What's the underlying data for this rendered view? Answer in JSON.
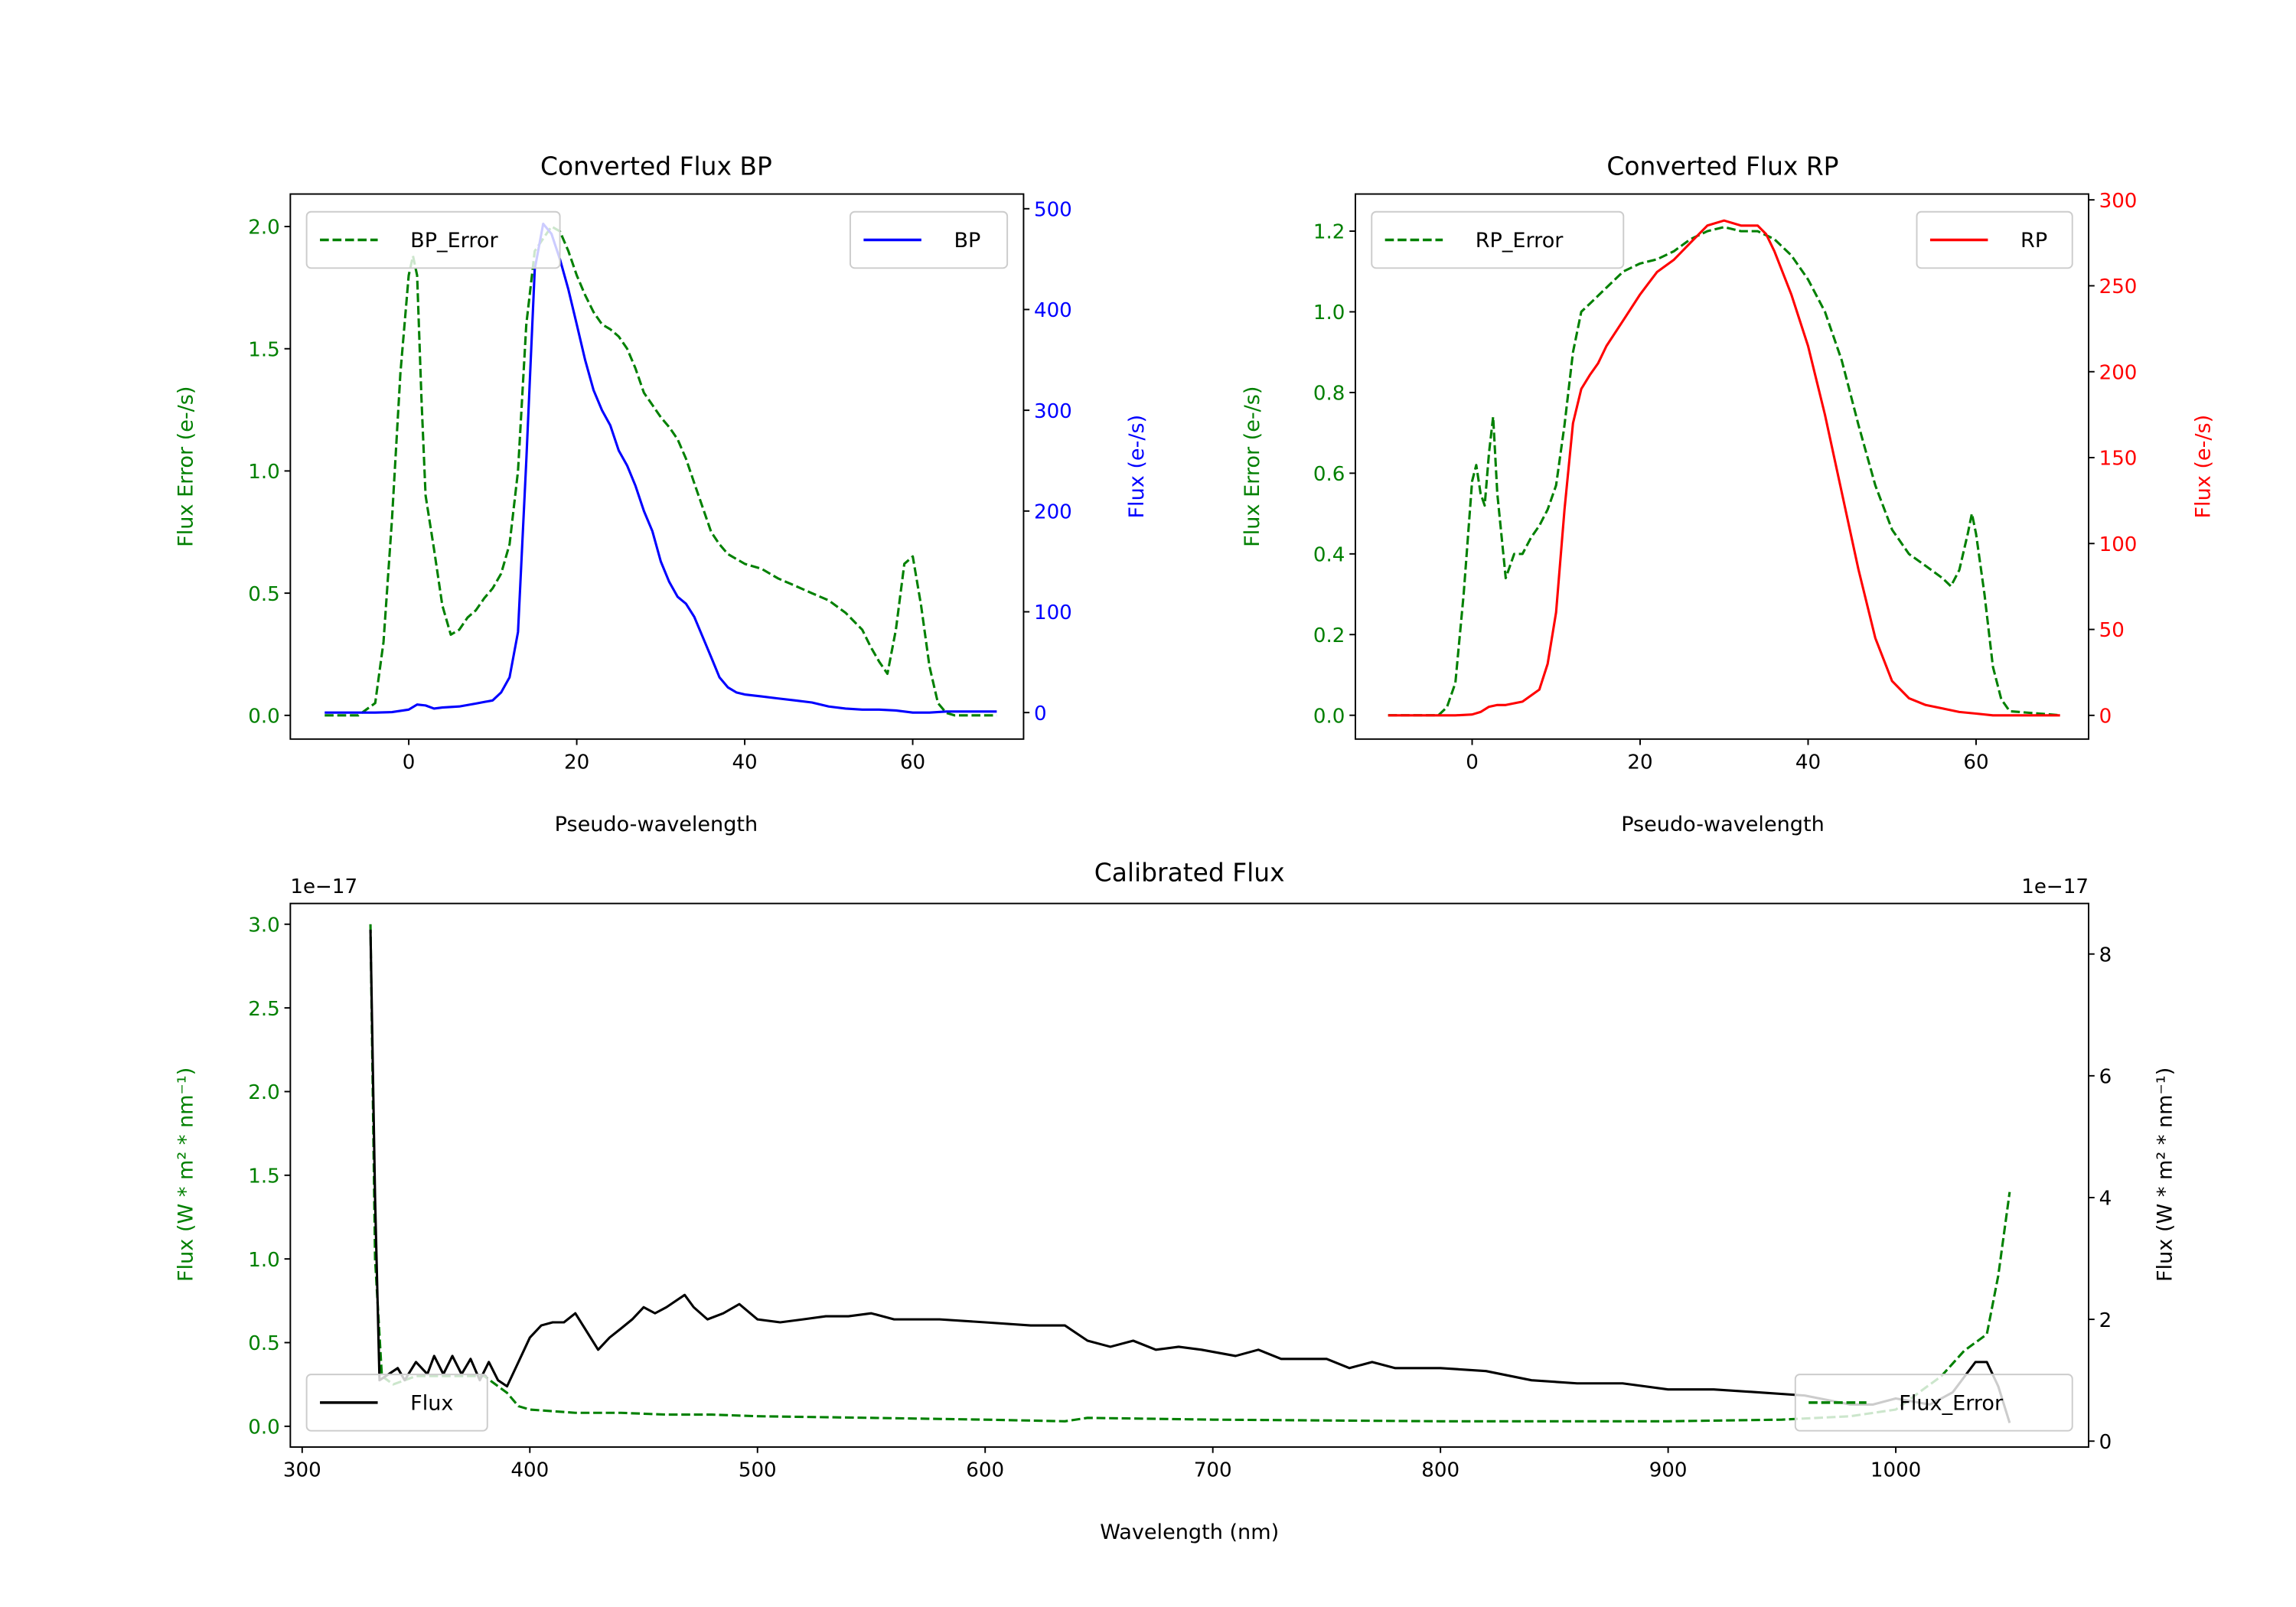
{
  "chart_data": [
    {
      "type": "line",
      "title": "Converted Flux BP",
      "xlabel": "Pseudo-wavelength",
      "ylabel_left": "Flux Error (e-/s)",
      "ylabel_right": "Flux (e-/s)",
      "xlim": [
        -14.1,
        73.2
      ],
      "ylim_left": [
        -0.097,
        2.133
      ],
      "ylim_right": [
        -26.3,
        514.6
      ],
      "xticks": [
        "0",
        "20",
        "40",
        "60"
      ],
      "yticks_left": [
        "0.0",
        "0.5",
        "1.0",
        "1.5",
        "2.0"
      ],
      "yticks_right": [
        "0",
        "100",
        "200",
        "300",
        "400",
        "500"
      ],
      "grid": false,
      "colors": {
        "left": "#008000",
        "right": "#0000ff"
      },
      "series": [
        {
          "name": "BP_Error",
          "axis": "left",
          "style": "dashed",
          "color": "#008000",
          "legend": "top-left",
          "x": [
            -10,
            -6,
            -4,
            -3,
            -2,
            -1,
            0,
            0.5,
            1,
            1.5,
            2,
            3,
            4,
            5,
            6,
            7,
            8,
            9,
            10,
            11,
            12,
            13,
            14,
            15,
            17,
            18,
            19,
            20,
            21,
            22,
            23,
            24,
            25,
            26,
            27,
            28,
            29,
            30,
            31,
            32,
            33,
            34,
            35,
            36,
            37,
            38,
            40,
            42,
            44,
            46,
            48,
            50,
            52,
            54,
            55,
            56,
            57,
            58,
            59,
            60,
            61,
            62,
            63,
            64,
            65,
            70
          ],
          "y": [
            0,
            0,
            0.05,
            0.3,
            0.8,
            1.4,
            1.8,
            1.88,
            1.8,
            1.3,
            0.9,
            0.68,
            0.45,
            0.33,
            0.35,
            0.4,
            0.43,
            0.48,
            0.52,
            0.58,
            0.7,
            1.0,
            1.6,
            1.9,
            2.0,
            1.98,
            1.9,
            1.8,
            1.72,
            1.65,
            1.6,
            1.58,
            1.55,
            1.5,
            1.42,
            1.32,
            1.27,
            1.22,
            1.18,
            1.13,
            1.05,
            0.95,
            0.85,
            0.75,
            0.7,
            0.66,
            0.62,
            0.6,
            0.56,
            0.53,
            0.5,
            0.47,
            0.42,
            0.35,
            0.28,
            0.22,
            0.17,
            0.35,
            0.62,
            0.65,
            0.45,
            0.2,
            0.05,
            0.01,
            0,
            0
          ]
        },
        {
          "name": "BP",
          "axis": "right",
          "style": "solid",
          "color": "#0000ff",
          "legend": "top-right",
          "x": [
            -10,
            -4,
            -2,
            0,
            1,
            2,
            3,
            4,
            6,
            8,
            10,
            11,
            12,
            13,
            14,
            15,
            16,
            17,
            18,
            19,
            20,
            21,
            22,
            23,
            24,
            25,
            26,
            27,
            28,
            29,
            30,
            31,
            32,
            33,
            34,
            35,
            36,
            37,
            38,
            39,
            40,
            42,
            44,
            46,
            48,
            50,
            52,
            54,
            56,
            58,
            60,
            62,
            64,
            66,
            70
          ],
          "y": [
            0,
            0,
            0.5,
            3,
            8,
            7,
            4,
            5,
            6,
            9,
            12,
            20,
            35,
            80,
            250,
            440,
            485,
            475,
            450,
            420,
            385,
            350,
            320,
            300,
            285,
            260,
            245,
            225,
            200,
            180,
            150,
            130,
            115,
            108,
            95,
            75,
            55,
            35,
            25,
            20,
            18,
            16,
            14,
            12,
            10,
            6,
            4,
            3,
            3,
            2,
            0,
            0,
            1,
            1,
            1
          ]
        }
      ]
    },
    {
      "type": "line",
      "title": "Converted Flux RP",
      "xlabel": "Pseudo-wavelength",
      "ylabel_left": "Flux Error (e-/s)",
      "ylabel_right": "Flux (e-/s)",
      "xlim": [
        -13.9,
        73.4
      ],
      "ylim_left": [
        -0.059,
        1.292
      ],
      "ylim_right": [
        -13.8,
        303.4
      ],
      "xticks": [
        "0",
        "20",
        "40",
        "60"
      ],
      "yticks_left": [
        "0.0",
        "0.2",
        "0.4",
        "0.6",
        "0.8",
        "1.0",
        "1.2"
      ],
      "yticks_right": [
        "0",
        "50",
        "100",
        "150",
        "200",
        "250",
        "300"
      ],
      "grid": false,
      "colors": {
        "left": "#008000",
        "right": "#ff0000"
      },
      "series": [
        {
          "name": "RP_Error",
          "axis": "left",
          "style": "dashed",
          "color": "#008000",
          "legend": "top-left",
          "x": [
            -10,
            -4,
            -3,
            -2,
            -1,
            0,
            0.5,
            1,
            1.5,
            2,
            2.5,
            3,
            4,
            5,
            6,
            7,
            8,
            9,
            10,
            11,
            12,
            13,
            14,
            16,
            18,
            20,
            22,
            24,
            26,
            28,
            30,
            32,
            34,
            36,
            38,
            40,
            42,
            44,
            46,
            48,
            50,
            52,
            54,
            56,
            57,
            58,
            59,
            59.5,
            60,
            61,
            62,
            63,
            64,
            70
          ],
          "y": [
            0,
            0,
            0.02,
            0.08,
            0.3,
            0.58,
            0.62,
            0.55,
            0.52,
            0.65,
            0.74,
            0.55,
            0.34,
            0.4,
            0.4,
            0.44,
            0.47,
            0.51,
            0.57,
            0.72,
            0.9,
            1.0,
            1.02,
            1.06,
            1.1,
            1.12,
            1.13,
            1.15,
            1.18,
            1.2,
            1.21,
            1.2,
            1.2,
            1.18,
            1.14,
            1.08,
            1.0,
            0.88,
            0.72,
            0.57,
            0.46,
            0.4,
            0.37,
            0.34,
            0.32,
            0.36,
            0.45,
            0.5,
            0.45,
            0.3,
            0.12,
            0.04,
            0.01,
            0
          ]
        },
        {
          "name": "RP",
          "axis": "right",
          "style": "solid",
          "color": "#ff0000",
          "legend": "top-right",
          "x": [
            -10,
            -2,
            0,
            1,
            2,
            3,
            4,
            6,
            8,
            9,
            10,
            11,
            12,
            13,
            14,
            15,
            16,
            18,
            20,
            22,
            24,
            26,
            28,
            30,
            32,
            34,
            35,
            36,
            38,
            40,
            42,
            44,
            46,
            48,
            50,
            52,
            54,
            56,
            58,
            60,
            62,
            70
          ],
          "y": [
            0,
            0,
            0.5,
            2,
            5,
            6,
            6,
            8,
            15,
            30,
            60,
            120,
            170,
            190,
            198,
            205,
            215,
            230,
            245,
            258,
            265,
            275,
            285,
            288,
            285,
            285,
            280,
            270,
            245,
            215,
            175,
            130,
            85,
            45,
            20,
            10,
            6,
            4,
            2,
            1,
            0,
            0
          ]
        }
      ]
    },
    {
      "type": "line",
      "title": "Calibrated Flux",
      "xlabel": "Wavelength (nm)",
      "ylabel_left": "Flux (W * m² * nm⁻¹)",
      "ylabel_right": "Flux (W * m² * nm⁻¹)",
      "offset_left": "1e−17",
      "offset_right": "1e−17",
      "xlim": [
        294.8,
        1084.7
      ],
      "ylim_left": [
        -0.124,
        3.124
      ],
      "ylim_right": [
        -0.097,
        8.83
      ],
      "xticks": [
        "300",
        "400",
        "500",
        "600",
        "700",
        "800",
        "900",
        "1000"
      ],
      "yticks_left": [
        "0.0",
        "0.5",
        "1.0",
        "1.5",
        "2.0",
        "2.5",
        "3.0"
      ],
      "yticks_right": [
        "0",
        "2",
        "4",
        "6",
        "8"
      ],
      "grid": false,
      "colors": {
        "left": "#008000",
        "right": "#000000"
      },
      "series": [
        {
          "name": "Flux_Error",
          "axis": "left",
          "style": "dashed",
          "color": "#008000",
          "legend": "lower-right",
          "x": [
            330,
            332,
            335,
            340,
            350,
            360,
            370,
            380,
            390,
            395,
            400,
            420,
            440,
            460,
            480,
            500,
            550,
            600,
            635,
            645,
            700,
            800,
            900,
            950,
            980,
            1000,
            1020,
            1030,
            1040,
            1045,
            1050
          ],
          "y": [
            3.0,
            1.0,
            0.3,
            0.25,
            0.3,
            0.3,
            0.3,
            0.3,
            0.2,
            0.12,
            0.1,
            0.08,
            0.08,
            0.07,
            0.07,
            0.06,
            0.05,
            0.04,
            0.03,
            0.05,
            0.04,
            0.03,
            0.03,
            0.04,
            0.06,
            0.1,
            0.3,
            0.45,
            0.55,
            0.9,
            1.4
          ]
        },
        {
          "name": "Flux",
          "axis": "right",
          "style": "solid",
          "color": "#000000",
          "legend": "lower-left",
          "x": [
            330,
            332,
            334,
            338,
            342,
            345,
            350,
            355,
            358,
            362,
            366,
            370,
            374,
            378,
            382,
            386,
            390,
            395,
            400,
            405,
            410,
            415,
            420,
            425,
            430,
            435,
            440,
            445,
            450,
            455,
            460,
            468,
            472,
            478,
            485,
            492,
            500,
            510,
            520,
            530,
            540,
            550,
            560,
            570,
            580,
            600,
            620,
            635,
            645,
            655,
            665,
            675,
            685,
            695,
            710,
            720,
            730,
            750,
            760,
            770,
            780,
            800,
            820,
            840,
            860,
            880,
            900,
            920,
            940,
            960,
            980,
            990,
            1000,
            1015,
            1025,
            1035,
            1040,
            1045,
            1050
          ],
          "y": [
            8.4,
            4,
            1.0,
            1.1,
            1.2,
            1.0,
            1.3,
            1.1,
            1.4,
            1.1,
            1.4,
            1.1,
            1.35,
            1.0,
            1.3,
            1.0,
            0.9,
            1.3,
            1.7,
            1.9,
            1.95,
            1.95,
            2.1,
            1.8,
            1.5,
            1.7,
            1.85,
            2.0,
            2.2,
            2.1,
            2.2,
            2.4,
            2.2,
            2.0,
            2.1,
            2.25,
            2.0,
            1.95,
            2.0,
            2.05,
            2.05,
            2.1,
            2.0,
            2.0,
            2.0,
            1.95,
            1.9,
            1.9,
            1.65,
            1.55,
            1.65,
            1.5,
            1.55,
            1.5,
            1.4,
            1.5,
            1.35,
            1.35,
            1.2,
            1.3,
            1.2,
            1.2,
            1.15,
            1.0,
            0.95,
            0.95,
            0.85,
            0.85,
            0.8,
            0.75,
            0.6,
            0.6,
            0.7,
            0.6,
            0.8,
            1.3,
            1.3,
            0.9,
            0.3
          ]
        }
      ]
    }
  ]
}
